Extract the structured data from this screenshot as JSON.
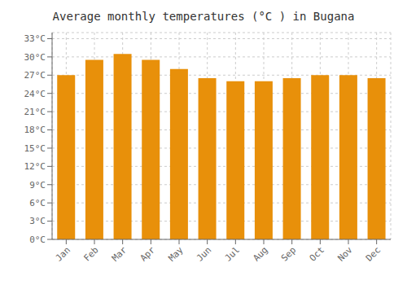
{
  "chart_data": {
    "type": "bar",
    "title": "Average monthly temperatures (°C ) in Bugana",
    "categories": [
      "Jan",
      "Feb",
      "Mar",
      "Apr",
      "May",
      "Jun",
      "Jul",
      "Aug",
      "Sep",
      "Oct",
      "Nov",
      "Dec"
    ],
    "values": [
      27.0,
      29.5,
      30.5,
      29.5,
      28.0,
      26.5,
      26.0,
      26.0,
      26.5,
      27.0,
      27.0,
      26.5
    ],
    "color": "#E8900A",
    "ylim": [
      0,
      34
    ],
    "yticks": [
      {
        "value": 0,
        "label": "0°C"
      },
      {
        "value": 3,
        "label": "3°C"
      },
      {
        "value": 6,
        "label": "6°C"
      },
      {
        "value": 9,
        "label": "9°C"
      },
      {
        "value": 12,
        "label": "12°C"
      },
      {
        "value": 15,
        "label": "15°C"
      },
      {
        "value": 18,
        "label": "18°C"
      },
      {
        "value": 21,
        "label": "21°C"
      },
      {
        "value": 24,
        "label": "24°C"
      },
      {
        "value": 27,
        "label": "27°C"
      },
      {
        "value": 30,
        "label": "30°C"
      },
      {
        "value": 33,
        "label": "33°C"
      }
    ],
    "grid": true
  }
}
